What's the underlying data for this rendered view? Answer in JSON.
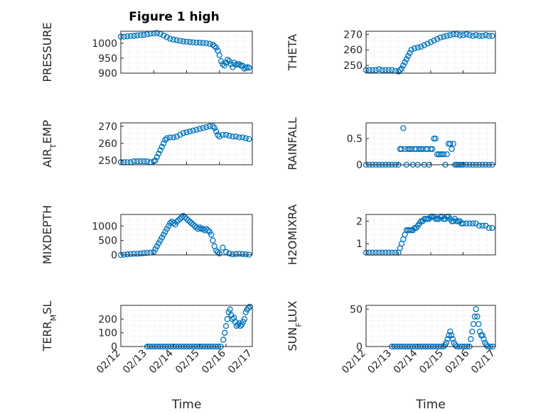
{
  "figure": {
    "title": "Figure 1 high",
    "background": "#ffffff",
    "marker_color": "#0072bd"
  },
  "chart_data": [
    {
      "type": "scatter",
      "ylabel": "PRESSURE",
      "ylim": [
        900,
        1040
      ],
      "yticks": [
        {
          "v": 900,
          "t": "900"
        },
        {
          "v": 950,
          "t": "950"
        },
        {
          "v": 1000,
          "t": "1000"
        }
      ],
      "xlim": [
        "02/13",
        "02/17"
      ],
      "showXTicks": false,
      "grid": true,
      "series": [
        {
          "x": [
            13.0,
            13.1,
            13.2,
            13.3,
            13.4,
            13.5,
            13.6,
            13.7,
            13.8,
            13.9,
            14.0,
            14.1,
            14.2,
            14.3,
            14.4,
            14.5,
            14.6,
            14.7,
            14.8,
            14.9,
            15.0,
            15.1,
            15.2,
            15.3,
            15.4,
            15.5,
            15.6,
            15.7,
            15.8,
            15.85,
            15.9,
            15.95,
            16.0,
            16.05,
            16.1,
            16.15,
            16.2,
            16.25,
            16.3,
            16.35,
            16.4,
            16.45,
            16.5,
            16.55,
            16.6,
            16.65,
            16.7,
            16.75,
            16.8,
            16.85,
            16.9
          ],
          "y": [
            1022,
            1022,
            1023,
            1024,
            1025,
            1026,
            1027,
            1028,
            1030,
            1032,
            1033,
            1034,
            1031,
            1026,
            1020,
            1015,
            1012,
            1010,
            1008,
            1006,
            1005,
            1004,
            1003,
            1002,
            1002,
            1001,
            1000,
            998,
            995,
            990,
            985,
            975,
            960,
            940,
            930,
            925,
            935,
            945,
            940,
            930,
            920,
            935,
            928,
            930,
            930,
            925,
            925,
            915,
            918,
            920,
            918
          ]
        }
      ]
    },
    {
      "type": "scatter",
      "ylabel": "THETA",
      "ylim": [
        245,
        272
      ],
      "yticks": [
        {
          "v": 250,
          "t": "250"
        },
        {
          "v": 260,
          "t": "260"
        },
        {
          "v": 270,
          "t": "270"
        }
      ],
      "xlim": [
        "02/13",
        "02/17"
      ],
      "showXTicks": false,
      "grid": true,
      "series": [
        {
          "x": [
            13.0,
            13.1,
            13.2,
            13.3,
            13.4,
            13.5,
            13.6,
            13.7,
            13.8,
            13.9,
            14.0,
            14.05,
            14.1,
            14.15,
            14.2,
            14.25,
            14.3,
            14.35,
            14.4,
            14.5,
            14.6,
            14.7,
            14.8,
            14.9,
            15.0,
            15.1,
            15.2,
            15.3,
            15.4,
            15.5,
            15.6,
            15.7,
            15.8,
            15.9,
            16.0,
            16.1,
            16.2,
            16.3,
            16.4,
            16.5,
            16.6,
            16.7,
            16.8,
            16.9
          ],
          "y": [
            247,
            247,
            247,
            247,
            247.5,
            247,
            247,
            247,
            247,
            246.5,
            246,
            247,
            248,
            250,
            252,
            254,
            256,
            258,
            260,
            261,
            261.5,
            262,
            263,
            264,
            265,
            266,
            267,
            268,
            268.5,
            269,
            269.5,
            270,
            270,
            269.5,
            269.5,
            270,
            269.5,
            269,
            269.5,
            269,
            269,
            269.5,
            269,
            269
          ]
        }
      ]
    },
    {
      "type": "scatter",
      "ylabel": "AIR_TEMP",
      "ylim": [
        247.5,
        272
      ],
      "yticks": [
        {
          "v": 250,
          "t": "250"
        },
        {
          "v": 260,
          "t": "260"
        },
        {
          "v": 270,
          "t": "270"
        }
      ],
      "xlim": [
        "02/13",
        "02/17"
      ],
      "showXTicks": false,
      "grid": true,
      "series": [
        {
          "x": [
            13.0,
            13.1,
            13.2,
            13.3,
            13.4,
            13.5,
            13.6,
            13.7,
            13.8,
            13.9,
            14.0,
            14.05,
            14.1,
            14.15,
            14.2,
            14.25,
            14.3,
            14.35,
            14.4,
            14.5,
            14.6,
            14.7,
            14.8,
            14.9,
            15.0,
            15.1,
            15.2,
            15.3,
            15.4,
            15.5,
            15.6,
            15.7,
            15.8,
            15.85,
            15.9,
            15.95,
            16.0,
            16.1,
            16.2,
            16.3,
            16.4,
            16.5,
            16.6,
            16.7,
            16.8,
            16.9
          ],
          "y": [
            249,
            249,
            249,
            249,
            249.5,
            249.5,
            249.5,
            249.5,
            249.5,
            249,
            249.5,
            250,
            252,
            254,
            256,
            258,
            260,
            262,
            263,
            263.5,
            263.5,
            264,
            265,
            266,
            266.5,
            267,
            267.5,
            268,
            268.5,
            269,
            269.5,
            270,
            270,
            269,
            267,
            265,
            264,
            265,
            265,
            264.5,
            264,
            264,
            263.5,
            263.5,
            263,
            262.5
          ]
        }
      ]
    },
    {
      "type": "scatter",
      "ylabel": "RAINFALL",
      "ylim": [
        0,
        0.8
      ],
      "yticks": [
        {
          "v": 0,
          "t": "0"
        },
        {
          "v": 0.5,
          "t": "0.5"
        }
      ],
      "xlim": [
        "02/13",
        "02/17"
      ],
      "showXTicks": false,
      "grid": true,
      "series": [
        {
          "x": [
            13.0,
            13.1,
            13.2,
            13.3,
            13.4,
            13.5,
            13.6,
            13.7,
            13.8,
            13.9,
            14.0,
            14.05,
            14.1,
            14.15,
            14.2,
            14.25,
            14.3,
            14.35,
            14.4,
            14.45,
            14.5,
            14.55,
            14.6,
            14.65,
            14.7,
            14.75,
            14.8,
            14.85,
            14.9,
            14.95,
            15.0,
            15.05,
            15.1,
            15.15,
            15.2,
            15.25,
            15.3,
            15.35,
            15.4,
            15.45,
            15.5,
            15.55,
            15.6,
            15.65,
            15.7,
            15.75,
            15.8,
            15.85,
            15.9,
            15.95,
            16.0,
            16.1,
            16.2,
            16.3,
            16.4,
            16.5,
            16.6,
            16.7,
            16.8,
            16.9
          ],
          "y": [
            0,
            0,
            0,
            0,
            0,
            0,
            0,
            0,
            0,
            0,
            0,
            0.3,
            0.3,
            0.7,
            0.3,
            0,
            0.3,
            0.3,
            0.3,
            0,
            0.3,
            0.3,
            0,
            0.3,
            0.3,
            0.3,
            0,
            0.3,
            0.3,
            0,
            0.3,
            0.3,
            0.5,
            0.5,
            0.2,
            0.2,
            0.2,
            0.2,
            0.2,
            0,
            0.2,
            0.4,
            0.4,
            0.3,
            0.4,
            0,
            0,
            0,
            0,
            0,
            0,
            0,
            0,
            0,
            0,
            0,
            0,
            0,
            0,
            0
          ]
        }
      ]
    },
    {
      "type": "scatter",
      "ylabel": "MIXDEPTH",
      "ylim": [
        0,
        1400
      ],
      "yticks": [
        {
          "v": 0,
          "t": "0"
        },
        {
          "v": 500,
          "t": "500"
        },
        {
          "v": 1000,
          "t": "1000"
        }
      ],
      "xlim": [
        "02/13",
        "02/17"
      ],
      "showXTicks": false,
      "grid": true,
      "series": [
        {
          "x": [
            13.0,
            13.1,
            13.2,
            13.3,
            13.4,
            13.5,
            13.6,
            13.7,
            13.8,
            13.9,
            14.0,
            14.05,
            14.1,
            14.15,
            14.2,
            14.25,
            14.3,
            14.35,
            14.4,
            14.45,
            14.5,
            14.55,
            14.6,
            14.65,
            14.7,
            14.75,
            14.8,
            14.85,
            14.9,
            14.95,
            15.0,
            15.05,
            15.1,
            15.15,
            15.2,
            15.25,
            15.3,
            15.35,
            15.4,
            15.45,
            15.5,
            15.55,
            15.6,
            15.65,
            15.7,
            15.75,
            15.8,
            15.85,
            15.9,
            15.95,
            16.0,
            16.1,
            16.2,
            16.3,
            16.4,
            16.5,
            16.6,
            16.7,
            16.8,
            16.9
          ],
          "y": [
            0,
            10,
            20,
            30,
            40,
            40,
            50,
            60,
            70,
            80,
            100,
            200,
            300,
            400,
            500,
            600,
            700,
            800,
            900,
            1000,
            1100,
            1150,
            1100,
            1050,
            1150,
            1200,
            1250,
            1300,
            1350,
            1300,
            1250,
            1200,
            1150,
            1100,
            1050,
            1000,
            950,
            900,
            950,
            900,
            900,
            850,
            900,
            850,
            800,
            700,
            500,
            300,
            150,
            100,
            50,
            250,
            100,
            50,
            20,
            30,
            40,
            30,
            20,
            10
          ]
        }
      ]
    },
    {
      "type": "scatter",
      "ylabel": "H2OMIXRA",
      "ylim": [
        0.5,
        2.3
      ],
      "yticks": [
        {
          "v": 1,
          "t": "1"
        },
        {
          "v": 2,
          "t": "2"
        }
      ],
      "xlim": [
        "02/13",
        "02/17"
      ],
      "showXTicks": false,
      "grid": true,
      "series": [
        {
          "x": [
            13.0,
            13.1,
            13.2,
            13.3,
            13.4,
            13.5,
            13.6,
            13.7,
            13.8,
            13.9,
            14.0,
            14.05,
            14.1,
            14.15,
            14.2,
            14.25,
            14.3,
            14.35,
            14.4,
            14.45,
            14.5,
            14.55,
            14.6,
            14.65,
            14.7,
            14.75,
            14.8,
            14.85,
            14.9,
            14.95,
            15.0,
            15.05,
            15.1,
            15.15,
            15.2,
            15.25,
            15.3,
            15.35,
            15.4,
            15.45,
            15.5,
            15.55,
            15.6,
            15.65,
            15.7,
            15.75,
            15.8,
            15.85,
            15.9,
            15.95,
            16.0,
            16.1,
            16.2,
            16.3,
            16.4,
            16.5,
            16.6,
            16.7,
            16.8,
            16.9
          ],
          "y": [
            0.6,
            0.6,
            0.6,
            0.6,
            0.6,
            0.6,
            0.6,
            0.6,
            0.6,
            0.6,
            0.6,
            0.8,
            1.0,
            1.2,
            1.4,
            1.6,
            1.6,
            1.6,
            1.6,
            1.6,
            1.7,
            1.7,
            1.8,
            1.9,
            2.0,
            2.0,
            2.1,
            2.1,
            2.1,
            2.1,
            2.2,
            2.2,
            2.2,
            2.1,
            2.1,
            2.1,
            2.2,
            2.2,
            2.1,
            2.1,
            2.2,
            2.2,
            2.1,
            2.0,
            2.0,
            2.1,
            2.0,
            2.0,
            2.0,
            1.9,
            1.9,
            1.9,
            1.9,
            1.9,
            1.9,
            1.8,
            1.8,
            1.8,
            1.7,
            1.7
          ]
        }
      ]
    },
    {
      "type": "scatter",
      "ylabel": "TERR_MSL",
      "ylim": [
        0,
        300
      ],
      "yticks": [
        {
          "v": 0,
          "t": "0"
        },
        {
          "v": 100,
          "t": "100"
        },
        {
          "v": 200,
          "t": "200"
        }
      ],
      "xlim": [
        "02/12",
        "02/17"
      ],
      "showXTicks": true,
      "xticks": [
        {
          "v": 12,
          "t": "02/12"
        },
        {
          "v": 13,
          "t": "02/13"
        },
        {
          "v": 14,
          "t": "02/14"
        },
        {
          "v": 15,
          "t": "02/15"
        },
        {
          "v": 16,
          "t": "02/16"
        },
        {
          "v": 17,
          "t": "02/17"
        }
      ],
      "xlabel": "Time",
      "grid": true,
      "series": [
        {
          "x": [
            13.0,
            13.1,
            13.2,
            13.3,
            13.4,
            13.5,
            13.6,
            13.7,
            13.8,
            13.9,
            14.0,
            14.1,
            14.2,
            14.3,
            14.4,
            14.5,
            14.6,
            14.7,
            14.8,
            14.9,
            15.0,
            15.1,
            15.2,
            15.3,
            15.4,
            15.5,
            15.6,
            15.7,
            15.8,
            15.9,
            15.95,
            16.0,
            16.05,
            16.1,
            16.15,
            16.2,
            16.25,
            16.3,
            16.35,
            16.4,
            16.45,
            16.5,
            16.55,
            16.6,
            16.65,
            16.7,
            16.75,
            16.8,
            16.85,
            16.9
          ],
          "y": [
            0,
            0,
            0,
            0,
            0,
            0,
            0,
            0,
            0,
            0,
            0,
            0,
            0,
            0,
            0,
            0,
            0,
            0,
            0,
            0,
            0,
            0,
            0,
            0,
            0,
            0,
            0,
            0,
            0,
            50,
            100,
            150,
            200,
            250,
            270,
            230,
            200,
            210,
            180,
            150,
            160,
            170,
            150,
            160,
            180,
            200,
            250,
            270,
            280,
            290
          ]
        }
      ]
    },
    {
      "type": "scatter",
      "ylabel": "SUN_FLUX",
      "ylim": [
        0,
        55
      ],
      "yticks": [
        {
          "v": 0,
          "t": "0"
        },
        {
          "v": 50,
          "t": "50"
        }
      ],
      "xlim": [
        "02/12",
        "02/17"
      ],
      "showXTicks": true,
      "xticks": [
        {
          "v": 12,
          "t": "02/12"
        },
        {
          "v": 13,
          "t": "02/13"
        },
        {
          "v": 14,
          "t": "02/14"
        },
        {
          "v": 15,
          "t": "02/15"
        },
        {
          "v": 16,
          "t": "02/16"
        },
        {
          "v": 17,
          "t": "02/17"
        }
      ],
      "xlabel": "Time",
      "grid": true,
      "series": [
        {
          "x": [
            13.0,
            13.1,
            13.2,
            13.3,
            13.4,
            13.5,
            13.6,
            13.7,
            13.8,
            13.9,
            14.0,
            14.1,
            14.2,
            14.3,
            14.4,
            14.5,
            14.6,
            14.7,
            14.8,
            14.9,
            15.0,
            15.05,
            15.1,
            15.15,
            15.2,
            15.25,
            15.3,
            15.35,
            15.4,
            15.45,
            15.5,
            15.6,
            15.7,
            15.8,
            15.9,
            16.0,
            16.05,
            16.1,
            16.15,
            16.2,
            16.25,
            16.3,
            16.35,
            16.4,
            16.45,
            16.5,
            16.55,
            16.6,
            16.65,
            16.7,
            16.8,
            16.9
          ],
          "y": [
            0,
            0,
            0,
            0,
            0,
            0,
            0,
            0,
            0,
            0,
            0,
            0,
            0,
            0,
            0,
            0,
            0,
            0,
            0,
            0,
            0,
            2,
            5,
            10,
            15,
            20,
            15,
            10,
            5,
            2,
            0,
            0,
            0,
            0,
            0,
            0,
            10,
            20,
            30,
            40,
            50,
            40,
            30,
            20,
            15,
            15,
            10,
            5,
            2,
            0,
            0,
            0
          ]
        }
      ]
    }
  ]
}
